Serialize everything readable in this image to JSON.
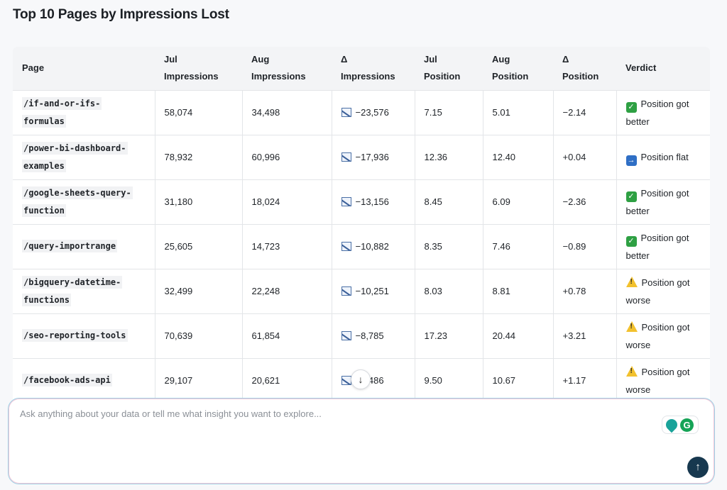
{
  "title": "Top 10 Pages by Impressions Lost",
  "table": {
    "headers": [
      {
        "line1": "Page",
        "line2": ""
      },
      {
        "line1": "Jul",
        "line2": "Impressions"
      },
      {
        "line1": "Aug",
        "line2": "Impressions"
      },
      {
        "line1": "Δ",
        "line2": "Impressions"
      },
      {
        "line1": "Jul",
        "line2": "Position"
      },
      {
        "line1": "Aug",
        "line2": "Position"
      },
      {
        "line1": "Δ",
        "line2": "Position"
      },
      {
        "line1": "Verdict",
        "line2": ""
      }
    ],
    "rows": [
      {
        "page1": "/if-and-or-ifs-",
        "page2": "formulas",
        "jul_impr": "58,074",
        "aug_impr": "34,498",
        "delta_impr": "−23,576",
        "jul_pos": "7.15",
        "aug_pos": "5.01",
        "delta_pos": "−2.14",
        "verdict1": "Position got",
        "verdict2": "better",
        "verdict_icon": "check-mark-icon",
        "verdict_type": "better"
      },
      {
        "page1": "/power-bi-dashboard-",
        "page2": "examples",
        "jul_impr": "78,932",
        "aug_impr": "60,996",
        "delta_impr": "−17,936",
        "jul_pos": "12.36",
        "aug_pos": "12.40",
        "delta_pos": "+0.04",
        "verdict1": "Position flat",
        "verdict2": "",
        "verdict_icon": "right-arrow-icon",
        "verdict_type": "flat"
      },
      {
        "page1": "/google-sheets-query-",
        "page2": "function",
        "jul_impr": "31,180",
        "aug_impr": "18,024",
        "delta_impr": "−13,156",
        "jul_pos": "8.45",
        "aug_pos": "6.09",
        "delta_pos": "−2.36",
        "verdict1": "Position got",
        "verdict2": "better",
        "verdict_icon": "check-mark-icon",
        "verdict_type": "better"
      },
      {
        "page1": "/query-importrange",
        "page2": "",
        "jul_impr": "25,605",
        "aug_impr": "14,723",
        "delta_impr": "−10,882",
        "jul_pos": "8.35",
        "aug_pos": "7.46",
        "delta_pos": "−0.89",
        "verdict1": "Position got",
        "verdict2": "better",
        "verdict_icon": "check-mark-icon",
        "verdict_type": "better"
      },
      {
        "page1": "/bigquery-datetime-",
        "page2": "functions",
        "jul_impr": "32,499",
        "aug_impr": "22,248",
        "delta_impr": "−10,251",
        "jul_pos": "8.03",
        "aug_pos": "8.81",
        "delta_pos": "+0.78",
        "verdict1": "Position got",
        "verdict2": "worse",
        "verdict_icon": "warning-icon",
        "verdict_type": "worse"
      },
      {
        "page1": "/seo-reporting-tools",
        "page2": "",
        "jul_impr": "70,639",
        "aug_impr": "61,854",
        "delta_impr": "−8,785",
        "jul_pos": "17.23",
        "aug_pos": "20.44",
        "delta_pos": "+3.21",
        "verdict1": "Position got",
        "verdict2": "worse",
        "verdict_icon": "warning-icon",
        "verdict_type": "worse"
      },
      {
        "page1": "/facebook-ads-api",
        "page2": "",
        "jul_impr": "29,107",
        "aug_impr": "20,621",
        "delta_impr": "−8,486",
        "jul_pos": "9.50",
        "aug_pos": "10.67",
        "delta_pos": "+1.17",
        "verdict1": "Position got",
        "verdict2": "worse",
        "verdict_icon": "warning-icon",
        "verdict_type": "worse"
      }
    ],
    "trend_icon": "chart-decreasing-icon"
  },
  "scroll_button": {
    "icon": "down-arrow-icon",
    "glyph": "↓"
  },
  "chat": {
    "placeholder": "Ask anything about your data or tell me what insight you want to explore...",
    "send_glyph": "↑",
    "extension_icons": [
      "location-pin-icon",
      "grammarly-icon"
    ],
    "grammarly_letter": "G"
  }
}
